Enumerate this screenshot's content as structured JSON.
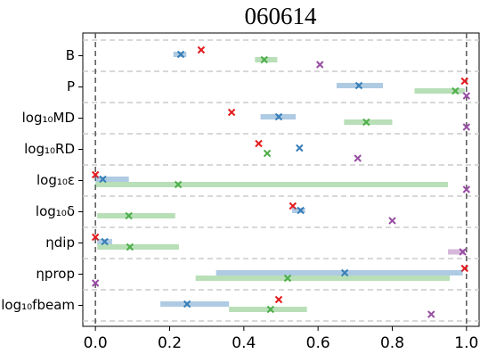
{
  "chart_data": {
    "type": "interval-dot",
    "title": "060614",
    "categories": [
      "B",
      "P",
      "log₁₀MD",
      "log₁₀RD",
      "log₁₀ε",
      "log₁₀δ",
      "ηdip",
      "ηprop",
      "log₁₀fbeam"
    ],
    "series": [
      {
        "color": "#e41a1c",
        "values": [
          0.285,
          0.995,
          0.367,
          0.44,
          0.0,
          0.532,
          0.0,
          0.995,
          0.494
        ],
        "intervals": [
          null,
          null,
          null,
          null,
          null,
          null,
          null,
          null,
          null
        ]
      },
      {
        "color": "#377eb8",
        "values": [
          0.23,
          0.71,
          0.494,
          0.55,
          0.02,
          0.553,
          0.025,
          0.672,
          0.247
        ],
        "intervals": [
          [
            0.21,
            0.245
          ],
          [
            0.65,
            0.775
          ],
          [
            0.445,
            0.54
          ],
          null,
          [
            0.0,
            0.09
          ],
          [
            0.53,
            0.565
          ],
          [
            0.005,
            0.045
          ],
          [
            0.325,
            0.99
          ],
          [
            0.175,
            0.36
          ]
        ]
      },
      {
        "color": "#4daf4a",
        "values": [
          0.455,
          0.97,
          0.73,
          0.463,
          0.223,
          0.09,
          0.093,
          0.518,
          0.472
        ],
        "intervals": [
          [
            0.43,
            0.49
          ],
          [
            0.86,
            0.995
          ],
          [
            0.67,
            0.8
          ],
          null,
          [
            0.0,
            0.95
          ],
          [
            0.005,
            0.215
          ],
          [
            0.005,
            0.225
          ],
          [
            0.27,
            0.955
          ],
          [
            0.36,
            0.57
          ]
        ]
      },
      {
        "color": "#984ea3",
        "values": [
          0.605,
          1.0,
          1.0,
          0.707,
          1.0,
          0.8,
          0.99,
          0.0,
          0.905
        ],
        "intervals": [
          null,
          null,
          null,
          null,
          null,
          null,
          [
            0.95,
            0.995
          ],
          null,
          null
        ]
      }
    ],
    "xlim": [
      -0.034,
      1.034
    ],
    "xticks": [
      {
        "value": 0,
        "label": "0.0"
      },
      {
        "value": 0.2,
        "label": "0.2"
      },
      {
        "value": 0.4,
        "label": "0.4"
      },
      {
        "value": 0.6,
        "label": "0.6"
      },
      {
        "value": 0.8,
        "label": "0.8"
      },
      {
        "value": 1,
        "label": "1.0"
      }
    ],
    "vlines": [
      0,
      1
    ],
    "grid": true
  }
}
